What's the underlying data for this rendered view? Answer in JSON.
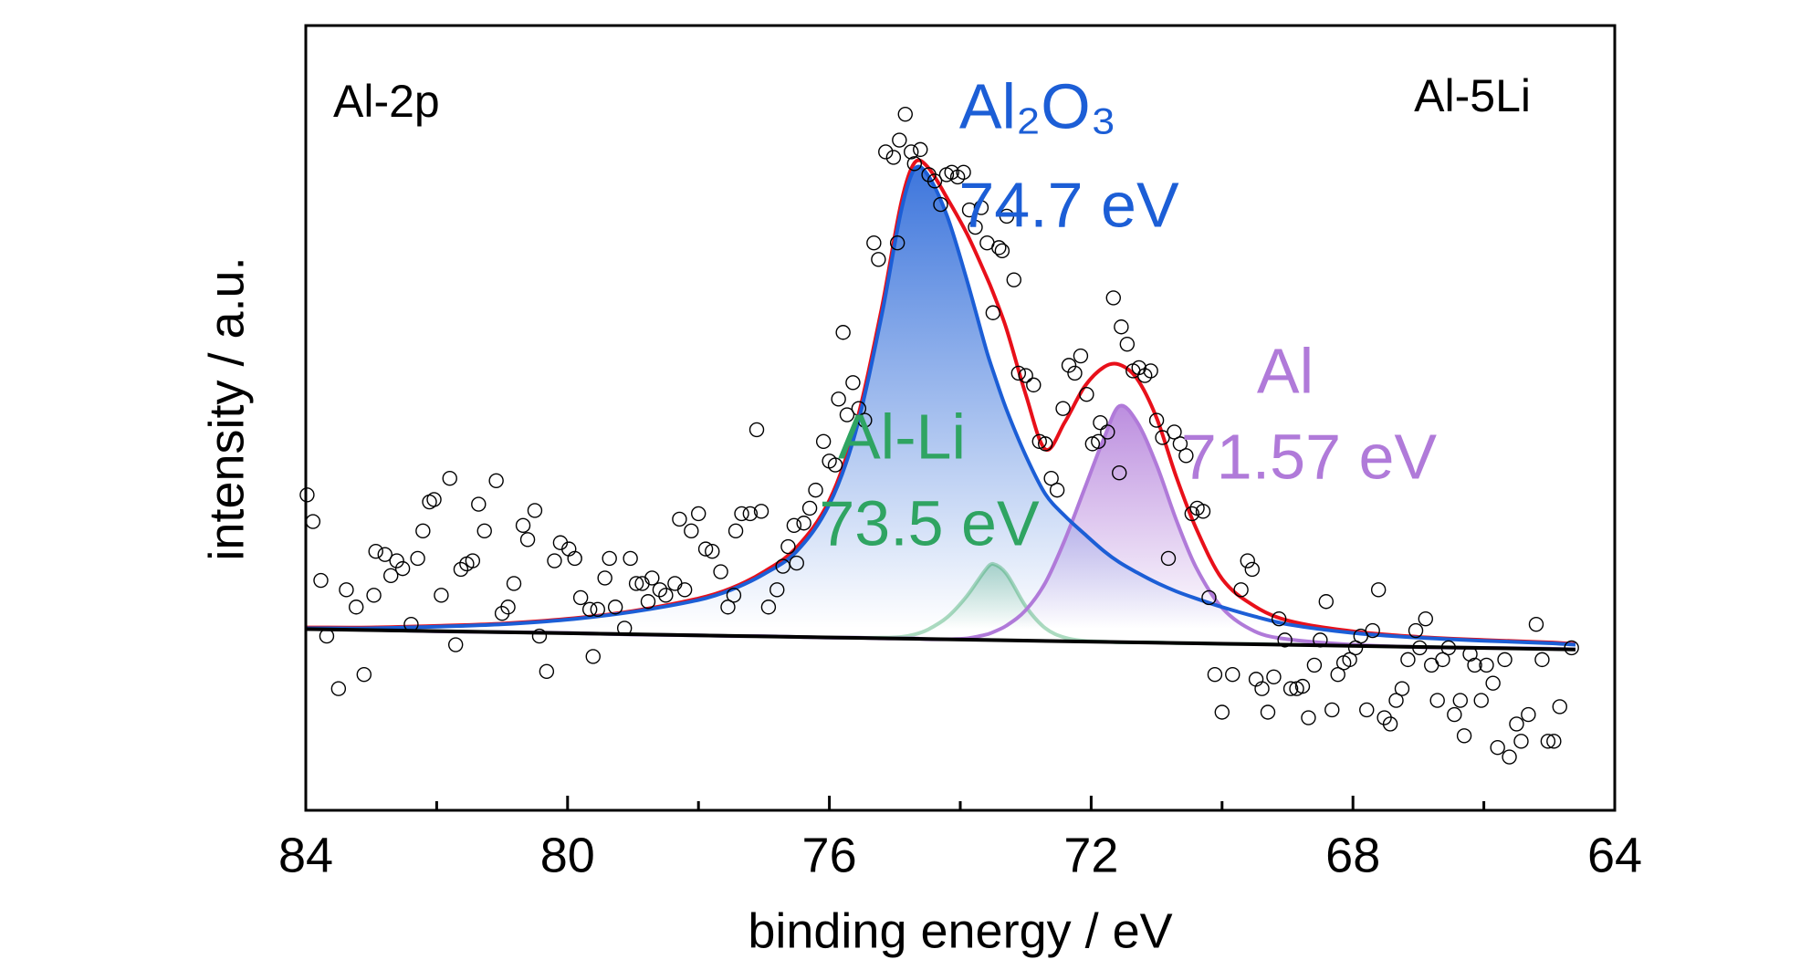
{
  "chart_data": {
    "type": "scatter",
    "xlabel": "binding energy / eV",
    "ylabel": "intensity / a.u.",
    "annotations": [
      "Al-2p",
      "Al-5Li"
    ],
    "xlim": [
      84,
      64
    ],
    "xticks": [
      84,
      80,
      76,
      72,
      68,
      64
    ],
    "xminor_ticks": [
      82,
      78,
      74,
      70,
      66
    ],
    "ylim": [
      0,
      100
    ],
    "x": [
      84,
      83,
      82,
      81,
      80,
      79,
      78,
      77.5,
      77,
      76.5,
      76,
      75.6,
      75.2,
      74.9,
      74.7,
      74.5,
      74.2,
      73.9,
      73.6,
      73.5,
      73.3,
      73.0,
      72.7,
      72.4,
      72.1,
      71.8,
      71.57,
      71.3,
      71.0,
      70.7,
      70.4,
      70.0,
      69.5,
      69,
      68,
      67,
      66,
      65,
      64.6
    ],
    "series": [
      {
        "type": "line",
        "name": "Al-Li",
        "label": "73.5 eV",
        "color": "#2fa462",
        "opacity": 0.4,
        "fill": true,
        "values": [
          23.1,
          23.0,
          22.8,
          22.7,
          22.6,
          22.4,
          22.3,
          22.2,
          22.2,
          22.1,
          22.0,
          22.0,
          22.0,
          22.1,
          22.4,
          23.0,
          24.6,
          27.3,
          30.8,
          31.4,
          30.2,
          26.0,
          23.2,
          22.0,
          21.6,
          21.5,
          21.4,
          21.4,
          21.4,
          21.3,
          21.3,
          21.2,
          21.2,
          21.1,
          21.0,
          20.8,
          20.7,
          20.6,
          20.5
        ]
      },
      {
        "type": "line",
        "name": "Al",
        "label": "71.57 eV",
        "color": "#b07ad9",
        "fill": true,
        "values": [
          23.1,
          23.0,
          22.8,
          22.7,
          22.6,
          22.4,
          22.3,
          22.2,
          22.2,
          22.1,
          22.0,
          22.0,
          21.9,
          21.9,
          21.9,
          21.8,
          21.8,
          21.9,
          22.4,
          22.7,
          23.5,
          25.5,
          29.0,
          34.5,
          41.0,
          47.5,
          51.5,
          49.5,
          44.0,
          37.0,
          31.0,
          25.8,
          22.8,
          21.8,
          21.1,
          20.8,
          20.7,
          20.6,
          20.5
        ]
      },
      {
        "type": "line",
        "color": "#e8101a",
        "values": [
          23.3,
          23.3,
          23.5,
          23.8,
          24.4,
          25.4,
          27.0,
          28.3,
          30.4,
          33.5,
          39.5,
          49.0,
          64.0,
          77.5,
          82.5,
          82.0,
          78.0,
          73.5,
          68.0,
          66.0,
          61.5,
          53.0,
          46.0,
          49.5,
          54.0,
          56.5,
          56.8,
          55.0,
          50.0,
          42.5,
          36.0,
          29.5,
          26.0,
          24.2,
          22.8,
          22.1,
          21.7,
          21.4,
          21.2
        ]
      },
      {
        "type": "line",
        "name": "Al₂O₃",
        "label": "74.7 eV",
        "color": "#1c5ed6",
        "fill": true,
        "values": [
          23.2,
          23.2,
          23.4,
          23.7,
          24.3,
          25.3,
          26.8,
          28.1,
          30.1,
          33.0,
          39.0,
          48.2,
          63.1,
          76.5,
          81.7,
          81.0,
          75.7,
          67.6,
          58.6,
          56.0,
          51.2,
          45.2,
          40.3,
          37.5,
          35.2,
          33.0,
          31.6,
          30.3,
          29.0,
          27.9,
          27.0,
          25.9,
          24.7,
          23.7,
          22.6,
          22.0,
          21.6,
          21.3,
          21.1
        ]
      },
      {
        "type": "line",
        "color": "#000000",
        "x": [
          84,
          64.6
        ],
        "values": [
          23.1,
          20.5
        ]
      },
      {
        "type": "scatter",
        "color": "#000000",
        "x": [
          83.98,
          83.89,
          83.77,
          83.68,
          83.5,
          83.38,
          83.23,
          83.11,
          82.96,
          82.93,
          82.79,
          82.7,
          82.61,
          82.52,
          82.39,
          82.29,
          82.21,
          82.11,
          82.04,
          81.93,
          81.8,
          81.71,
          81.63,
          81.54,
          81.45,
          81.36,
          81.27,
          81.09,
          81.0,
          80.91,
          80.82,
          80.68,
          80.61,
          80.5,
          80.43,
          80.32,
          80.2,
          80.11,
          79.98,
          79.89,
          79.8,
          79.66,
          79.61,
          79.54,
          79.43,
          79.36,
          79.27,
          79.13,
          79.04,
          78.95,
          78.86,
          78.77,
          78.71,
          78.59,
          78.5,
          78.36,
          78.29,
          78.21,
          78.11,
          78.0,
          77.89,
          77.79,
          77.66,
          77.55,
          77.46,
          77.43,
          77.34,
          77.21,
          77.11,
          77.04,
          76.93,
          76.8,
          76.71,
          76.63,
          76.54,
          76.5,
          76.39,
          76.3,
          76.21,
          76.09,
          76.0,
          75.91,
          75.86,
          75.79,
          75.73,
          75.64,
          75.55,
          75.46,
          75.32,
          75.25,
          75.14,
          75.02,
          74.96,
          74.93,
          74.84,
          74.75,
          74.7,
          74.61,
          74.48,
          74.39,
          74.3,
          74.21,
          74.13,
          74.04,
          73.95,
          73.86,
          73.77,
          73.68,
          73.59,
          73.5,
          73.41,
          73.36,
          73.29,
          73.18,
          73.11,
          73.0,
          72.88,
          72.79,
          72.7,
          72.61,
          72.52,
          72.43,
          72.34,
          72.25,
          72.16,
          72.07,
          71.98,
          71.89,
          71.86,
          71.75,
          71.66,
          71.57,
          71.54,
          71.45,
          71.36,
          71.27,
          71.18,
          71.09,
          71.0,
          70.91,
          70.82,
          70.73,
          70.64,
          70.55,
          70.46,
          70.38,
          70.29,
          70.2,
          70.11,
          70.0,
          69.84,
          69.71,
          69.61,
          69.54,
          69.48,
          69.39,
          69.3,
          69.21,
          69.13,
          69.04,
          68.95,
          68.86,
          68.77,
          68.68,
          68.59,
          68.5,
          68.41,
          68.32,
          68.23,
          68.14,
          68.05,
          67.96,
          67.88,
          67.79,
          67.7,
          67.61,
          67.52,
          67.43,
          67.34,
          67.25,
          67.16,
          67.04,
          66.98,
          66.89,
          66.8,
          66.71,
          66.63,
          66.54,
          66.45,
          66.36,
          66.3,
          66.21,
          66.14,
          66.04,
          65.96,
          65.86,
          65.79,
          65.68,
          65.61,
          65.5,
          65.43,
          65.32,
          65.2,
          65.11,
          65.02,
          64.93,
          64.84,
          64.66
        ],
        "values": [
          40.2,
          36.8,
          29.3,
          22.2,
          15.5,
          28.1,
          25.9,
          17.3,
          27.4,
          33.0,
          32.6,
          29.9,
          31.8,
          30.8,
          23.7,
          32.1,
          35.6,
          39.3,
          39.6,
          27.4,
          42.3,
          21.1,
          30.7,
          31.4,
          31.8,
          39.0,
          35.6,
          42.0,
          25.1,
          25.9,
          28.9,
          36.3,
          34.5,
          38.2,
          22.2,
          17.7,
          31.8,
          34.1,
          33.3,
          32.1,
          27.1,
          25.6,
          19.6,
          25.6,
          29.6,
          32.1,
          25.9,
          23.2,
          32.1,
          28.9,
          28.9,
          26.6,
          29.6,
          28.1,
          27.4,
          28.9,
          37.1,
          28.1,
          35.6,
          37.8,
          33.3,
          33.0,
          30.4,
          25.9,
          27.4,
          35.6,
          37.8,
          37.8,
          48.5,
          38.1,
          25.9,
          28.1,
          31.1,
          33.6,
          36.3,
          31.5,
          36.6,
          38.5,
          40.8,
          47.0,
          44.5,
          44.0,
          52.4,
          60.9,
          50.4,
          54.5,
          51.2,
          49.7,
          72.3,
          70.2,
          83.9,
          83.2,
          72.3,
          85.4,
          88.7,
          83.9,
          82.4,
          84.2,
          81.0,
          80.2,
          77.2,
          81.0,
          81.3,
          80.7,
          81.3,
          76.5,
          74.3,
          76.8,
          72.3,
          63.4,
          71.7,
          71.3,
          75.7,
          67.6,
          55.7,
          55.4,
          54.2,
          47.0,
          46.7,
          42.3,
          40.8,
          51.2,
          56.7,
          55.7,
          57.9,
          53.0,
          46.7,
          47.0,
          49.4,
          48.2,
          65.3,
          43.0,
          61.6,
          59.4,
          56.0,
          56.4,
          55.4,
          56.0,
          49.7,
          47.5,
          32.1,
          48.2,
          46.7,
          45.2,
          37.8,
          38.5,
          38.1,
          27.1,
          17.3,
          12.5,
          17.3,
          28.1,
          31.8,
          30.7,
          16.7,
          15.5,
          12.5,
          17.0,
          24.4,
          21.7,
          15.5,
          15.5,
          15.8,
          11.8,
          18.5,
          21.7,
          26.6,
          12.8,
          17.3,
          18.8,
          19.2,
          20.7,
          22.2,
          12.8,
          22.9,
          28.1,
          11.8,
          11.0,
          14.0,
          15.5,
          19.2,
          22.9,
          20.7,
          24.4,
          18.5,
          14.0,
          19.2,
          20.7,
          12.2,
          14.0,
          9.5,
          19.9,
          18.5,
          14.0,
          18.5,
          16.2,
          8.0,
          19.2,
          6.8,
          11.0,
          8.8,
          12.2,
          23.7,
          19.2,
          8.8,
          8.8,
          13.2,
          20.7
        ]
      }
    ]
  }
}
